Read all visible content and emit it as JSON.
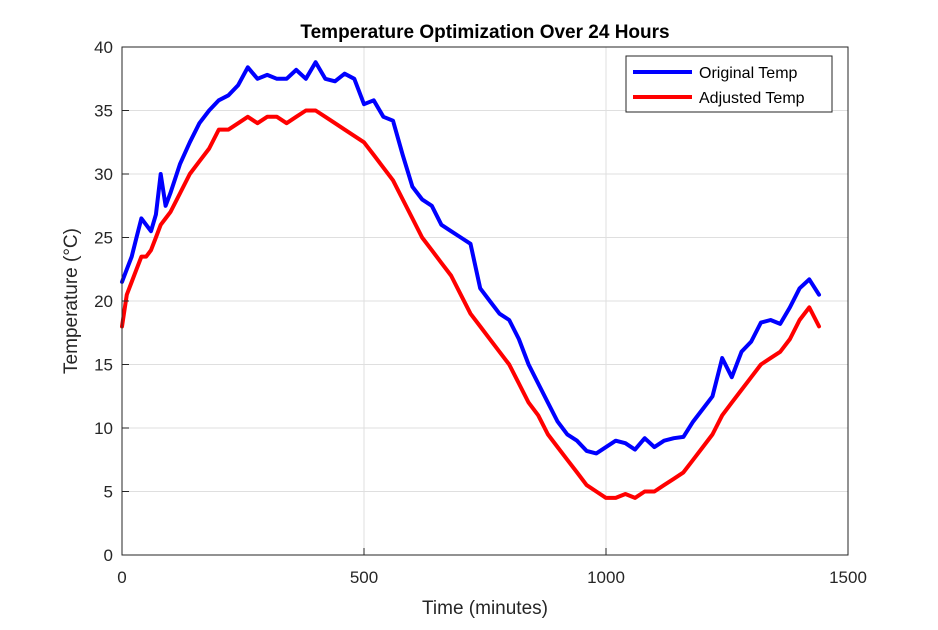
{
  "chart_data": {
    "type": "line",
    "title": "Temperature Optimization Over 24 Hours",
    "xlabel": "Time (minutes)",
    "ylabel": "Temperature (°C)",
    "xlim": [
      0,
      1500
    ],
    "ylim": [
      0,
      40
    ],
    "xticks": [
      0,
      500,
      1000,
      1500
    ],
    "yticks": [
      0,
      5,
      10,
      15,
      20,
      25,
      30,
      35,
      40
    ],
    "grid": true,
    "legend_position": "top-right",
    "series": [
      {
        "name": "Original Temp",
        "color": "#0000ff",
        "x": [
          0,
          10,
          20,
          30,
          40,
          50,
          60,
          70,
          80,
          90,
          100,
          120,
          140,
          160,
          180,
          200,
          220,
          240,
          260,
          280,
          300,
          320,
          340,
          360,
          380,
          400,
          420,
          440,
          460,
          480,
          500,
          520,
          540,
          560,
          580,
          600,
          620,
          640,
          660,
          680,
          700,
          720,
          740,
          760,
          780,
          800,
          820,
          840,
          860,
          880,
          900,
          920,
          940,
          960,
          980,
          1000,
          1020,
          1040,
          1060,
          1080,
          1100,
          1120,
          1140,
          1160,
          1180,
          1200,
          1220,
          1240,
          1260,
          1280,
          1300,
          1320,
          1340,
          1360,
          1380,
          1400,
          1420,
          1440
        ],
        "y": [
          21.5,
          22.5,
          23.5,
          25,
          26.5,
          26,
          25.5,
          26.8,
          30,
          27.5,
          28.5,
          30.8,
          32.5,
          34,
          35,
          35.8,
          36.2,
          37,
          38.4,
          37.5,
          37.8,
          37.5,
          37.5,
          38.2,
          37.5,
          38.8,
          37.5,
          37.3,
          37.9,
          37.5,
          35.5,
          35.8,
          34.5,
          34.2,
          31.5,
          29,
          28,
          27.5,
          26,
          25.5,
          25,
          24.5,
          21,
          20,
          19,
          18.5,
          17,
          15,
          13.5,
          12,
          10.5,
          9.5,
          9,
          8.2,
          8,
          8.5,
          9,
          8.8,
          8.3,
          9.2,
          8.5,
          9,
          9.2,
          9.3,
          10.5,
          11.5,
          12.5,
          15.5,
          14,
          16,
          16.8,
          18.3,
          18.5,
          18.2,
          19.5,
          21,
          21.7,
          20.5
        ]
      },
      {
        "name": "Adjusted Temp",
        "color": "#ff0000",
        "x": [
          0,
          10,
          20,
          30,
          40,
          50,
          60,
          70,
          80,
          90,
          100,
          120,
          140,
          160,
          180,
          200,
          220,
          240,
          260,
          280,
          300,
          320,
          340,
          360,
          380,
          400,
          420,
          440,
          460,
          480,
          500,
          520,
          540,
          560,
          580,
          600,
          620,
          640,
          660,
          680,
          700,
          720,
          740,
          760,
          780,
          800,
          820,
          840,
          860,
          880,
          900,
          920,
          940,
          960,
          980,
          1000,
          1020,
          1040,
          1060,
          1080,
          1100,
          1120,
          1140,
          1160,
          1180,
          1200,
          1220,
          1240,
          1260,
          1280,
          1300,
          1320,
          1340,
          1360,
          1380,
          1400,
          1420,
          1440
        ],
        "y": [
          18,
          20.5,
          21.5,
          22.5,
          23.5,
          23.5,
          24,
          25,
          26,
          26.5,
          27,
          28.5,
          30,
          31,
          32,
          33.5,
          33.5,
          34,
          34.5,
          34,
          34.5,
          34.5,
          34,
          34.5,
          35,
          35,
          34.5,
          34,
          33.5,
          33,
          32.5,
          31.5,
          30.5,
          29.5,
          28,
          26.5,
          25,
          24,
          23,
          22,
          20.5,
          19,
          18,
          17,
          16,
          15,
          13.5,
          12,
          11,
          9.5,
          8.5,
          7.5,
          6.5,
          5.5,
          5,
          4.5,
          4.5,
          4.8,
          4.5,
          5,
          5,
          5.5,
          6,
          6.5,
          7.5,
          8.5,
          9.5,
          11,
          12,
          13,
          14,
          15,
          15.5,
          16,
          17,
          18.5,
          19.5,
          18
        ]
      }
    ]
  }
}
